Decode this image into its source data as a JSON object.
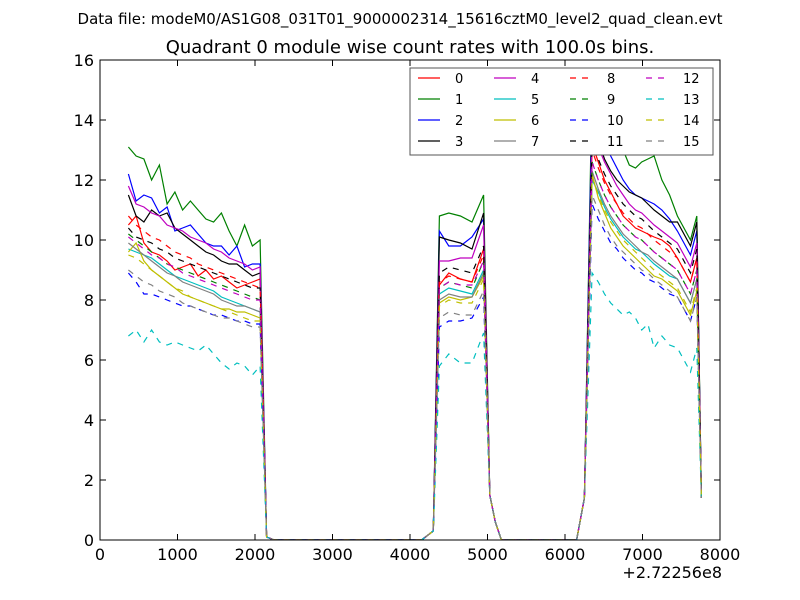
{
  "chart_data": {
    "type": "line",
    "suptitle": "Data file: modeM0/AS1G08_031T01_9000002314_15616cztM0_level2_quad_clean.evt",
    "title": "Quadrant 0 module wise count rates with 100.0s bins.",
    "xlabel": "",
    "ylabel": "",
    "x_offset_label": "+2.72256e8",
    "xlim": [
      0,
      8000
    ],
    "ylim": [
      0,
      16
    ],
    "xticks": [
      0,
      1000,
      2000,
      3000,
      4000,
      5000,
      6000,
      7000,
      8000
    ],
    "yticks": [
      0,
      2,
      4,
      6,
      8,
      10,
      12,
      14,
      16
    ],
    "grid": false,
    "legend_position": "top-right",
    "segments": [
      {
        "x": [
          366,
          466,
          566,
          666,
          766,
          866,
          966,
          1066,
          1166,
          1266,
          1366,
          1466,
          1566,
          1666,
          1766,
          1866,
          1966,
          2066,
          2150,
          2250
        ]
      },
      {
        "x": [
          4150,
          4300,
          4350,
          4450,
          4550,
          4650,
          4750,
          4850,
          4950,
          5050,
          5150
        ]
      },
      {
        "x": [
          6150,
          6250,
          6350,
          6450,
          6550,
          6650,
          6750,
          6850,
          6950,
          7050,
          7150,
          7250,
          7350,
          7450,
          7550,
          7650,
          7750
        ]
      }
    ],
    "series": [
      {
        "name": "0",
        "color": "#ff0000",
        "dash": false,
        "base": 10.0,
        "drop": 0.06,
        "shape": [
          10.5,
          10.8,
          9.9,
          9.6,
          9.5,
          9.3,
          9.0,
          9.1,
          9.2,
          8.8,
          9.0,
          8.7,
          8.8,
          8.6,
          8.4,
          8.5,
          8.6,
          8.7
        ],
        "mid": [
          8.5,
          8.9,
          8.7,
          8.6,
          9.7
        ],
        "late": [
          13.2,
          12.6,
          12.0,
          11.6,
          11.2,
          10.8,
          10.6,
          10.4,
          10.3,
          10.2,
          10.1,
          10.0,
          9.8,
          9.4
        ]
      },
      {
        "name": "1",
        "color": "#008000",
        "dash": false,
        "shape": [
          13.1,
          12.8,
          12.7,
          12.0,
          12.5,
          11.2,
          11.6,
          11.0,
          11.3,
          11.0,
          10.7,
          10.6,
          10.9,
          10.3,
          9.8,
          10.5,
          9.8,
          10.0
        ],
        "mid": [
          10.8,
          10.9,
          10.8,
          10.6,
          11.5
        ],
        "late": [
          15.3,
          14.8,
          14.2,
          13.8,
          13.5,
          13.0,
          12.5,
          12.4,
          12.6,
          12.7,
          12.8,
          12.0,
          11.5,
          10.8
        ]
      },
      {
        "name": "2",
        "color": "#0000ff",
        "dash": false,
        "shape": [
          12.2,
          11.3,
          11.5,
          11.4,
          10.9,
          11.1,
          10.3,
          10.4,
          10.5,
          10.2,
          9.9,
          9.8,
          9.8,
          9.5,
          9.8,
          9.1,
          9.2,
          9.2
        ],
        "mid": [
          10.3,
          9.8,
          9.8,
          10.1,
          10.7
        ],
        "late": [
          14.7,
          13.8,
          13.2,
          12.8,
          12.4,
          12.0,
          11.7,
          11.5,
          11.4,
          11.3,
          11.2,
          11.0,
          10.7,
          10.3
        ]
      },
      {
        "name": "3",
        "color": "#000000",
        "dash": false,
        "shape": [
          11.5,
          10.8,
          10.6,
          11.0,
          10.8,
          10.9,
          10.4,
          10.2,
          10.0,
          9.8,
          9.6,
          9.5,
          9.3,
          9.2,
          9.2,
          9.0,
          8.8,
          8.9
        ],
        "mid": [
          10.1,
          10.0,
          9.9,
          9.7,
          10.9
        ],
        "late": [
          13.9,
          13.3,
          12.7,
          12.3,
          12.0,
          11.8,
          11.6,
          11.5,
          11.4,
          11.2,
          11.0,
          10.8,
          10.6,
          10.6
        ]
      },
      {
        "name": "4",
        "color": "#bf00bf",
        "dash": false,
        "shape": [
          11.8,
          11.2,
          11.1,
          10.9,
          10.8,
          10.5,
          10.4,
          10.3,
          10.1,
          10.0,
          9.9,
          9.7,
          9.6,
          9.4,
          9.3,
          9.2,
          9.0,
          9.1
        ],
        "mid": [
          9.3,
          9.3,
          9.4,
          9.4,
          10.5
        ],
        "late": [
          13.6,
          13.1,
          12.6,
          12.2,
          11.8,
          11.5,
          11.2,
          11.0,
          10.9,
          10.7,
          10.5,
          10.3,
          10.1,
          9.9
        ]
      },
      {
        "name": "5",
        "color": "#00bfbf",
        "dash": false,
        "shape": [
          9.7,
          9.6,
          9.5,
          9.4,
          9.2,
          9.0,
          8.8,
          8.7,
          8.6,
          8.5,
          8.4,
          8.3,
          8.1,
          8.0,
          7.9,
          7.8,
          7.7,
          7.6
        ],
        "mid": [
          8.2,
          8.4,
          8.3,
          8.2,
          9.0
        ],
        "late": [
          12.0,
          11.6,
          11.1,
          10.7,
          10.4,
          10.1,
          9.9,
          9.7,
          9.6,
          9.4,
          9.2,
          9.0,
          8.8,
          8.7
        ]
      },
      {
        "name": "6",
        "color": "#bfbf00",
        "dash": false,
        "shape": [
          9.6,
          9.9,
          9.3,
          9.0,
          8.8,
          8.6,
          8.4,
          8.2,
          8.1,
          8.0,
          7.9,
          7.8,
          7.7,
          7.7,
          7.6,
          7.6,
          7.5,
          7.4
        ],
        "mid": [
          7.9,
          8.1,
          8.0,
          8.1,
          8.8
        ],
        "late": [
          12.2,
          11.4,
          10.9,
          10.4,
          10.1,
          9.8,
          9.6,
          9.4,
          9.2,
          9.0,
          8.8,
          8.7,
          8.5,
          8.3
        ]
      },
      {
        "name": "7",
        "color": "#808080",
        "dash": false,
        "shape": [
          9.9,
          9.7,
          9.5,
          9.3,
          9.1,
          8.9,
          8.8,
          8.6,
          8.5,
          8.4,
          8.3,
          8.2,
          8.0,
          7.9,
          7.8,
          7.8,
          7.7,
          7.6
        ],
        "mid": [
          8.0,
          8.2,
          8.1,
          8.1,
          8.9
        ],
        "late": [
          12.3,
          11.7,
          11.2,
          10.8,
          10.5,
          10.2,
          10.0,
          9.8,
          9.6,
          9.5,
          9.3,
          9.1,
          8.9,
          8.7
        ]
      },
      {
        "name": "8",
        "color": "#ff0000",
        "dash": true,
        "shape": [
          10.8,
          10.5,
          10.3,
          10.1,
          10.0,
          9.8,
          9.6,
          9.5,
          9.4,
          9.2,
          9.1,
          9.0,
          8.9,
          8.8,
          8.7,
          8.6,
          8.5,
          8.4
        ],
        "mid": [
          8.6,
          8.8,
          8.7,
          8.6,
          9.5
        ],
        "late": [
          13.0,
          12.4,
          11.9,
          11.5,
          11.2,
          10.9,
          10.7,
          10.5,
          10.4,
          10.2,
          10.0,
          9.8,
          9.6,
          9.4
        ]
      },
      {
        "name": "9",
        "color": "#008000",
        "dash": true,
        "shape": [
          10.2,
          10.0,
          9.8,
          9.6,
          9.4,
          9.2,
          9.1,
          9.0,
          8.9,
          8.8,
          8.7,
          8.6,
          8.5,
          8.4,
          8.3,
          8.2,
          8.1,
          8.0
        ],
        "mid": [
          8.4,
          8.6,
          8.5,
          8.4,
          9.3
        ],
        "late": [
          12.6,
          12.0,
          11.5,
          11.1,
          10.8,
          10.5,
          10.3,
          10.1,
          10.0,
          9.8,
          9.6,
          9.4,
          9.2,
          9.0
        ]
      },
      {
        "name": "10",
        "color": "#0000ff",
        "dash": true,
        "shape": [
          8.9,
          8.6,
          8.2,
          8.2,
          8.1,
          8.0,
          7.9,
          7.8,
          7.8,
          7.7,
          7.6,
          7.5,
          7.5,
          7.4,
          7.3,
          7.3,
          7.2,
          7.2
        ],
        "mid": [
          7.1,
          7.3,
          7.3,
          7.4,
          8.1
        ],
        "late": [
          11.2,
          10.7,
          10.3,
          9.9,
          9.7,
          9.4,
          9.2,
          9.0,
          8.9,
          8.7,
          8.6,
          8.4,
          8.2,
          8.1
        ]
      },
      {
        "name": "11",
        "color": "#000000",
        "dash": true,
        "shape": [
          10.4,
          10.1,
          10.0,
          9.9,
          9.7,
          9.6,
          9.4,
          9.3,
          9.2,
          9.1,
          9.0,
          8.9,
          8.8,
          8.7,
          8.6,
          8.5,
          8.4,
          8.4
        ],
        "mid": [
          8.9,
          9.1,
          9.0,
          8.9,
          9.8
        ],
        "late": [
          13.3,
          12.7,
          12.2,
          11.8,
          11.5,
          11.2,
          11.0,
          10.8,
          10.7,
          10.5,
          10.3,
          10.1,
          9.9,
          9.7
        ]
      },
      {
        "name": "12",
        "color": "#bf00bf",
        "dash": true,
        "shape": [
          10.1,
          9.9,
          9.7,
          9.5,
          9.4,
          9.2,
          9.1,
          8.9,
          8.8,
          8.7,
          8.6,
          8.5,
          8.4,
          8.3,
          8.2,
          8.1,
          8.0,
          8.0
        ],
        "mid": [
          8.4,
          8.6,
          8.5,
          8.5,
          9.3
        ],
        "late": [
          12.6,
          12.0,
          11.5,
          11.1,
          10.8,
          10.5,
          10.3,
          10.1,
          10.0,
          9.8,
          9.6,
          9.4,
          9.2,
          9.0
        ]
      },
      {
        "name": "13",
        "color": "#00bfbf",
        "dash": true,
        "shape": [
          6.8,
          7.0,
          6.6,
          7.0,
          6.6,
          6.5,
          6.6,
          6.5,
          6.4,
          6.3,
          6.5,
          6.2,
          5.9,
          5.7,
          5.9,
          5.8,
          5.5,
          5.8
        ],
        "mid": [
          5.8,
          6.2,
          5.9,
          5.9,
          6.9
        ],
        "late": [
          8.9,
          8.6,
          8.2,
          7.9,
          7.7,
          7.5,
          7.6,
          7.4,
          7.0,
          7.2,
          6.4,
          6.8,
          6.5,
          6.4
        ]
      },
      {
        "name": "14",
        "color": "#bfbf00",
        "dash": true,
        "shape": [
          9.5,
          9.4,
          9.2,
          9.0,
          8.8,
          8.6,
          8.4,
          8.3,
          8.1,
          8.0,
          7.9,
          7.8,
          7.7,
          7.6,
          7.5,
          7.4,
          7.3,
          7.3
        ],
        "mid": [
          7.8,
          8.0,
          7.9,
          7.9,
          8.7
        ],
        "late": [
          12.1,
          11.5,
          11.0,
          10.6,
          10.3,
          10.0,
          9.8,
          9.6,
          9.4,
          9.2,
          9.0,
          8.8,
          8.6,
          8.4
        ]
      },
      {
        "name": "15",
        "color": "#808080",
        "dash": true,
        "shape": [
          9.0,
          8.8,
          8.6,
          8.5,
          8.3,
          8.2,
          8.1,
          7.9,
          7.8,
          7.7,
          7.6,
          7.5,
          7.4,
          7.4,
          7.3,
          7.2,
          7.1,
          7.1
        ],
        "mid": [
          7.4,
          7.6,
          7.5,
          7.5,
          8.3
        ],
        "late": [
          11.5,
          11.0,
          10.5,
          10.1,
          9.8,
          9.6,
          9.4,
          9.2,
          9.0,
          8.9,
          8.7,
          8.5,
          8.3,
          8.1
        ]
      }
    ]
  }
}
